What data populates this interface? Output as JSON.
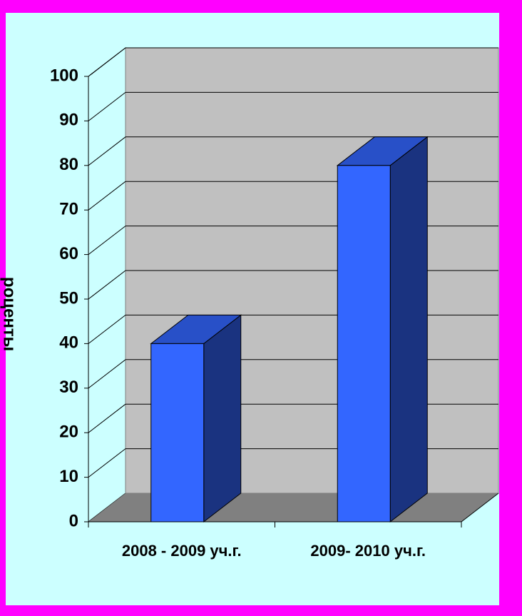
{
  "chart_data": {
    "type": "bar3d",
    "y_label": "роценты",
    "categories": [
      "2008 - 2009 уч.г.",
      "2009- 2010 уч.г."
    ],
    "values": [
      40,
      80
    ],
    "color": "#3366ff",
    "ylim": [
      0,
      100
    ],
    "yticks": [
      0,
      10,
      20,
      30,
      40,
      50,
      60,
      70,
      80,
      90,
      100
    ],
    "grid": true
  }
}
